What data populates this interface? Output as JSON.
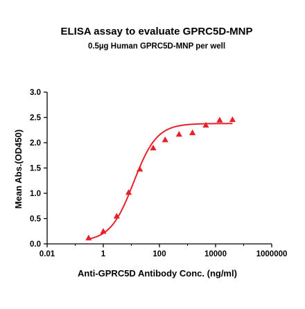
{
  "chart_data": {
    "type": "scatter",
    "title": "ELISA assay to evaluate GPRC5D-MNP",
    "subtitle": "0.5µg Human GPRC5D-MNP per well",
    "xlabel": "Anti-GPRC5D Antibody Conc. (ng/ml)",
    "ylabel": "Mean Abs.(OD450)",
    "x_scale": "log",
    "xlim": [
      0.01,
      1000000
    ],
    "ylim": [
      0,
      3.0
    ],
    "x_ticks": [
      "0.01",
      "1",
      "100",
      "10000",
      "1000000"
    ],
    "y_ticks": [
      "0.0",
      "0.5",
      "1.0",
      "1.5",
      "2.0",
      "2.5",
      "3.0"
    ],
    "x_tick_values": [
      0.01,
      1,
      100,
      10000,
      1000000
    ],
    "y_tick_values": [
      0,
      0.5,
      1.0,
      1.5,
      2.0,
      2.5,
      3.0
    ],
    "grid": false,
    "marker_color": "#e8202a",
    "curve_color": "#e8202a",
    "series": [
      {
        "marker": "triangle",
        "x": [
          0.3,
          1,
          3,
          8,
          20,
          60,
          160,
          500,
          1500,
          4500,
          14000,
          40000
        ],
        "y": [
          0.12,
          0.25,
          0.55,
          1.02,
          1.48,
          1.9,
          2.06,
          2.17,
          2.2,
          2.35,
          2.45,
          2.46
        ]
      }
    ],
    "fit_curve": {
      "model": "4PL",
      "bottom": 0.05,
      "top": 2.38,
      "ec50": 12,
      "hill": 1.05,
      "x_range": [
        0.3,
        40000
      ]
    }
  }
}
